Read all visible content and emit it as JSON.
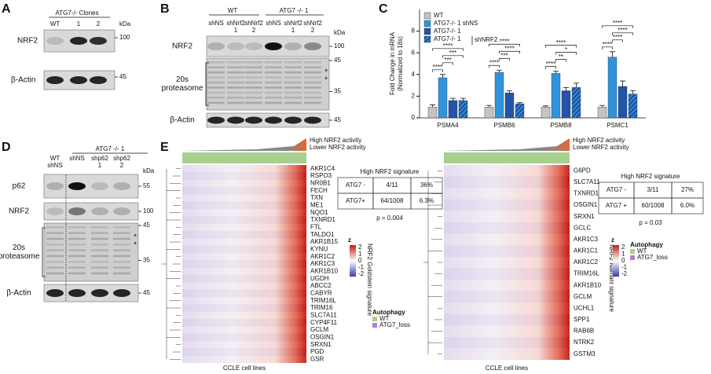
{
  "panel_a": {
    "letter": "A",
    "header": "ATG7-/- Clones",
    "lanes": [
      "WT",
      "1",
      "2"
    ],
    "kda": "kDa",
    "rows": [
      {
        "label": "NRF2",
        "marker": "100"
      },
      {
        "label": "β-Actin",
        "marker": "45"
      }
    ]
  },
  "panel_b": {
    "letter": "B",
    "groups": [
      "WT",
      "ATG7 -/- 1"
    ],
    "lanes": [
      [
        "shNS"
      ],
      [
        "shNrf2",
        "1"
      ],
      [
        "shNrf2",
        "2"
      ],
      [
        "shNS"
      ],
      [
        "shNrf2",
        "1"
      ],
      [
        "shNrf2",
        "2"
      ]
    ],
    "kda": "kDa",
    "rows": [
      {
        "label": [
          "NRF2"
        ],
        "markers": [
          "100"
        ]
      },
      {
        "label": [
          "20s",
          "proteasome"
        ],
        "markers": [
          "45",
          "35"
        ],
        "stars": [
          "*",
          "*"
        ]
      },
      {
        "label": [
          "β-Actin"
        ],
        "markers": [
          "45"
        ]
      }
    ]
  },
  "chart_data": {
    "type": "bar",
    "letter": "C",
    "ylabel": [
      "Fold Change in mRNA",
      "(Normalized to 18s)"
    ],
    "categories": [
      "PSMA4",
      "PSMB6",
      "PSMB8",
      "PSMC1"
    ],
    "series": [
      {
        "name": "WT",
        "color": "#c4c4c4",
        "values": [
          1,
          1,
          1,
          1
        ],
        "errors": [
          0.2,
          0.15,
          0.1,
          0.15
        ]
      },
      {
        "name": "ATG7-/- 1 shNS",
        "color": "#2f94dc",
        "values": [
          3.7,
          4.2,
          4.1,
          5.6
        ],
        "errors": [
          0.3,
          0.2,
          0.2,
          0.5
        ]
      },
      {
        "name": "ATG7-/- 1",
        "color": "#2254a8",
        "values": [
          1.6,
          2.3,
          2.5,
          2.9
        ],
        "errors": [
          0.2,
          0.2,
          0.3,
          0.5
        ]
      },
      {
        "name": "ATG7-/- 1",
        "color": "#2f7fd0",
        "hatch": true,
        "values": [
          1.6,
          1.3,
          2.8,
          2.2
        ],
        "errors": [
          0.2,
          0.1,
          0.4,
          0.3
        ]
      }
    ],
    "group_label": "shNRF2",
    "significance": [
      [
        "****",
        "***",
        "***",
        "****"
      ],
      [
        "****",
        "***",
        "****",
        "****"
      ],
      [
        "****",
        "**",
        "*",
        "****"
      ],
      [
        "****",
        "****",
        "****",
        "****"
      ]
    ],
    "ylim": [
      0,
      10
    ],
    "yticks": [
      0,
      2,
      4,
      6,
      8
    ]
  },
  "panel_d": {
    "letter": "D",
    "group": "ATG7 -/- 1",
    "lanes": [
      [
        "WT",
        "shNS"
      ],
      [
        "shNS"
      ],
      [
        "shp62",
        "1"
      ],
      [
        "shp62",
        "2"
      ]
    ],
    "kda": "kDa",
    "rows": [
      {
        "label": [
          "p62"
        ],
        "markers": [
          "55"
        ]
      },
      {
        "label": [
          "NRF2"
        ],
        "markers": [
          "100"
        ]
      },
      {
        "label": [
          "20s",
          "proteasome"
        ],
        "markers": [
          "45",
          "35"
        ],
        "stars": [
          "*",
          "*"
        ]
      },
      {
        "label": [
          "β-Actin"
        ],
        "markers": [
          "45"
        ]
      }
    ]
  },
  "panel_e": {
    "letter": "E",
    "legend_high": "High NRF2 activity",
    "legend_low": "Lower NRF2 activity",
    "key_title": "z",
    "key_ticks": [
      "2",
      "1",
      "0",
      "-1",
      "-2"
    ],
    "autophagy_title": "Autophagy",
    "autophagy_items": [
      "WT",
      "ATG7_loss"
    ],
    "heatmaps": [
      {
        "genes": [
          "AKR1C4",
          "RSPO3",
          "NR0B1",
          "FECH",
          "TXN",
          "ME1",
          "NQO1",
          "TXNRD1",
          "FTL",
          "TALDO1",
          "AKR1B15",
          "KYNU",
          "AKR1C2",
          "AKR1C3",
          "AKR1B10",
          "UGDH",
          "ABCC2",
          "CABYR",
          "TRIM16L",
          "TRIM16",
          "SLC7A11",
          "CYP4F11",
          "GCLM",
          "OSGIN1",
          "SRXN1",
          "PGD",
          "GSR"
        ],
        "side_label": "NRF2 Goldstein signature",
        "x_label": "CCLE cell lines",
        "table": {
          "title": "High NRF2 signature",
          "rows": [
            [
              "ATG7 -",
              "4/11",
              "36%"
            ],
            [
              "ATG7+",
              "64/1008",
              "6.3%"
            ]
          ],
          "p": "p = 0.004"
        }
      },
      {
        "genes": [
          "G6PD",
          "SLC7A11",
          "TXNRD1",
          "OSGIN1",
          "SRXN1",
          "GCLC",
          "AKR1C3",
          "AKR1C1",
          "AKR1C2",
          "TRIM16L",
          "AKR1B10",
          "GCLM",
          "UCHL1",
          "SPP1",
          "RAB6B",
          "NTRK2",
          "GSTM3"
        ],
        "side_label": "NRF2 Namani signature",
        "x_label": "CCLE cell lines",
        "table": {
          "title": "High NRF2 signature",
          "rows": [
            [
              "ATG7 -",
              "3/11",
              "27%"
            ],
            [
              "ATG7 +",
              "60/1008",
              "6.0%"
            ]
          ],
          "p": "p = 0.03"
        }
      }
    ]
  }
}
